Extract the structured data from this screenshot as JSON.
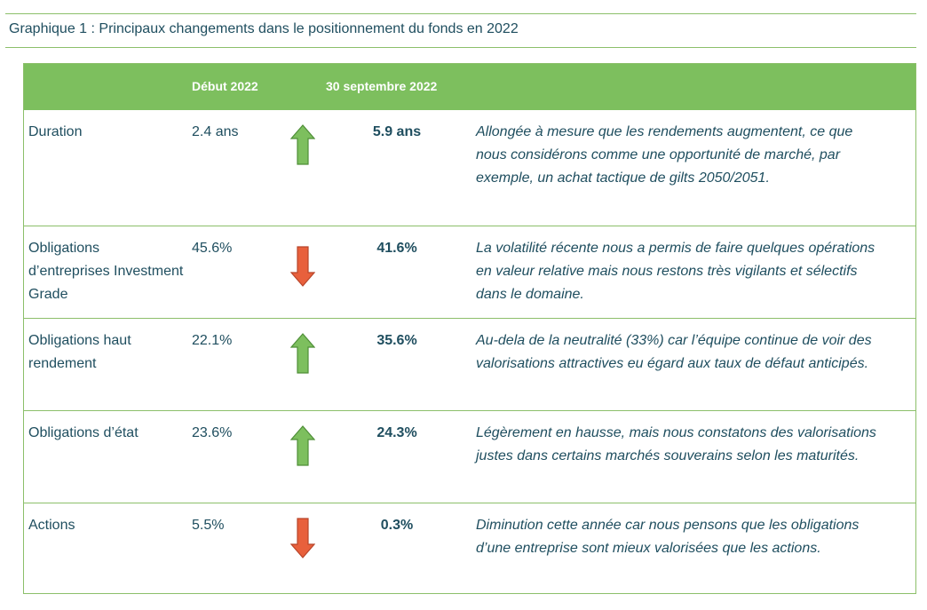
{
  "title": "Graphique 1 : Principaux changements dans le positionnement du fonds en 2022",
  "table": {
    "headers": {
      "start": "Début 2022",
      "end": "30 septembre 2022"
    },
    "rows": [
      {
        "label": "Duration",
        "start": "2.4 ans",
        "direction": "up",
        "end": "5.9 ans",
        "comment": "Allongée à mesure que les rendements augmentent, ce que nous considérons comme une opportunité de marché, par exemple, un achat tactique de gilts 2050/2051."
      },
      {
        "label": "Obligations d’entreprises Investment Grade",
        "start": "45.6%",
        "direction": "down",
        "end": "41.6%",
        "comment": "La volatilité récente nous a permis de faire quelques opérations en valeur relative mais nous restons très vigilants et sélectifs dans le domaine."
      },
      {
        "label": "Obligations haut rendement",
        "start": "22.1%",
        "direction": "up",
        "end": "35.6%",
        "comment": "Au-dela de la neutralité (33%) car l’équipe continue de voir des valorisations attractives eu égard aux taux de défaut anticipés."
      },
      {
        "label": "Obligations d’état",
        "start": "23.6%",
        "direction": "up",
        "end": "24.3%",
        "comment": "Légèrement en hausse, mais nous constatons des valorisations justes dans certains marchés souverains selon les maturités."
      },
      {
        "label": "Actions",
        "start": "5.5%",
        "direction": "down",
        "end": "0.3%",
        "comment": "Diminution cette année car nous pensons que les obligations d’une entreprise sont mieux valorisées que les actions."
      }
    ]
  },
  "colors": {
    "up": "#7dbf5e",
    "down": "#e8603c",
    "header": "#7dbf5e",
    "text": "#1f4e5f"
  },
  "icons": {
    "up": "arrow-up-icon",
    "down": "arrow-down-icon"
  }
}
